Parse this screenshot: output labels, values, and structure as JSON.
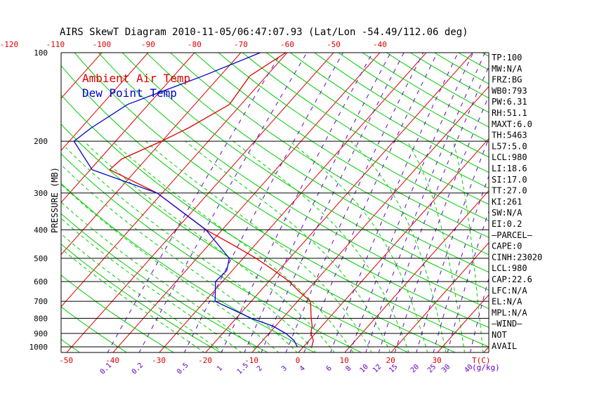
{
  "title": "AIRS SkewT Diagram 2010-11-05/06:47:07.93 (Lat/Lon -54.49/112.06 deg)",
  "colors": {
    "temp": "#dd0000",
    "dew": "#0000cc",
    "dry_adiabat": "#00cc00",
    "moist_adiabat": "#00cc00",
    "mixing_ratio": "#6600cc",
    "isotherm": "#dd0000",
    "isobar": "#000000",
    "tick_top": "#dd0000",
    "tick_bottom": "#dd0000",
    "mixing_label": "#6600cc"
  },
  "legend": [
    {
      "label": "Ambient Air Temp",
      "color": "#dd0000"
    },
    {
      "label": "Dew Point Temp",
      "color": "#0000cc"
    }
  ],
  "indices": [
    "TP:100",
    "MW:N/A",
    "FRZ:BG",
    "WB0:793",
    "PW:6.31",
    "RH:51.1",
    "MAXT:6.0",
    "TH:5463",
    "L57:5.0",
    "LCL:980",
    "LI:18.6",
    "SI:17.0",
    "TT:27.0",
    "KI:261",
    "SW:N/A",
    "EI:0.2",
    "—PARCEL—",
    "CAPE:0",
    "CINH:23020",
    "LCL:980",
    "CAP:22.6",
    "LFC:N/A",
    "EL:N/A",
    "MPL:N/A",
    "—WIND—",
    "NOT",
    "AVAIL"
  ],
  "chart_data": {
    "type": "line",
    "title": "AIRS SkewT Diagram 2010-11-05/06:47:07.93 (Lat/Lon -54.49/112.06 deg)",
    "ylabel": "PRESSURE (MB)",
    "xlabel": "T(C)",
    "y_scale": "log",
    "ylim": [
      1050,
      100
    ],
    "y_ticks": [
      100,
      200,
      300,
      400,
      500,
      600,
      700,
      800,
      900,
      1000
    ],
    "x_ticks_bottom": [
      -50,
      -40,
      -30,
      -20,
      -10,
      0,
      10,
      20,
      30
    ],
    "x_ticks_top": [
      -120,
      -110,
      -100,
      -90,
      -80,
      -70,
      -60,
      -50,
      -40
    ],
    "x_axis_unit_label": "T(C)",
    "mixing_ratio_labels": [
      "0.1",
      "0.2",
      "0.5",
      "1",
      "1.5",
      "2",
      "3",
      "4",
      "6",
      "8",
      "10",
      "12",
      "15",
      "20",
      "25",
      "30",
      "40"
    ],
    "mixing_ratio_unit": "(g/kg)",
    "series": [
      {
        "name": "Ambient Air Temp",
        "points": [
          {
            "p": 100,
            "t": -60.3
          },
          {
            "p": 120,
            "t": -63.6
          },
          {
            "p": 150,
            "t": -62.5
          },
          {
            "p": 180,
            "t": -66.8
          },
          {
            "p": 200,
            "t": -70.1
          },
          {
            "p": 230,
            "t": -75.3
          },
          {
            "p": 250,
            "t": -75.8
          },
          {
            "p": 300,
            "t": -61.1
          },
          {
            "p": 400,
            "t": -43.5
          },
          {
            "p": 450,
            "t": -34.8
          },
          {
            "p": 500,
            "t": -27.2
          },
          {
            "p": 550,
            "t": -21.0
          },
          {
            "p": 600,
            "t": -15.6
          },
          {
            "p": 650,
            "t": -11.4
          },
          {
            "p": 700,
            "t": -7.2
          },
          {
            "p": 800,
            "t": -3.8
          },
          {
            "p": 850,
            "t": -2.1
          },
          {
            "p": 900,
            "t": -1.0
          },
          {
            "p": 950,
            "t": 0.9
          },
          {
            "p": 1000,
            "t": 1.8
          }
        ]
      },
      {
        "name": "Dew Point Temp",
        "points": [
          {
            "p": 100,
            "t": -65.8
          },
          {
            "p": 120,
            "t": -73.7
          },
          {
            "p": 150,
            "t": -84.5
          },
          {
            "p": 180,
            "t": -87.8
          },
          {
            "p": 200,
            "t": -89.0
          },
          {
            "p": 250,
            "t": -79.6
          },
          {
            "p": 300,
            "t": -61.1
          },
          {
            "p": 400,
            "t": -43.5
          },
          {
            "p": 500,
            "t": -33.0
          },
          {
            "p": 550,
            "t": -31.2
          },
          {
            "p": 600,
            "t": -31.5
          },
          {
            "p": 700,
            "t": -27.8
          },
          {
            "p": 800,
            "t": -16.7
          },
          {
            "p": 850,
            "t": -10.6
          },
          {
            "p": 900,
            "t": -6.4
          },
          {
            "p": 950,
            "t": -3.3
          },
          {
            "p": 1000,
            "t": -1.3
          }
        ]
      }
    ]
  }
}
